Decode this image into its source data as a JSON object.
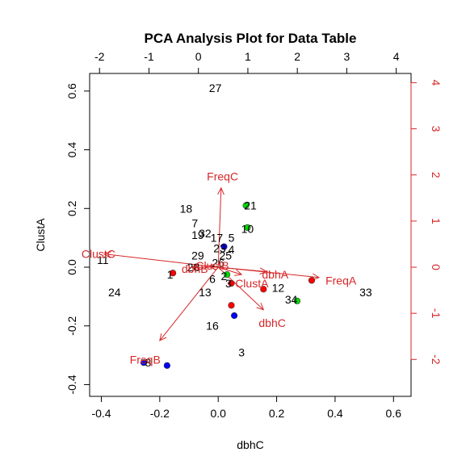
{
  "chart_data": {
    "type": "scatter",
    "title": "PCA Analysis Plot for Data Table",
    "xlabel": "dbhC",
    "ylabel": "ClustA",
    "xlim": [
      -0.44,
      0.66
    ],
    "ylim": [
      -0.44,
      0.66
    ],
    "x_ticks": [
      "-0.4",
      "-0.2",
      "0.0",
      "0.2",
      "0.4",
      "0.6"
    ],
    "y_ticks": [
      "-0.4",
      "-0.2",
      "0.0",
      "0.2",
      "0.4",
      "0.6"
    ],
    "x_tick_values": [
      -0.4,
      -0.2,
      0.0,
      0.2,
      0.4,
      0.6
    ],
    "y_tick_values": [
      -0.4,
      -0.2,
      0.0,
      0.2,
      0.4,
      0.6
    ],
    "secondary_xlim": [
      -2.2,
      4.3
    ],
    "secondary_ylim": [
      -2.8,
      4.2
    ],
    "top_ticks": [
      "-2",
      "-1",
      "0",
      "1",
      "2",
      "3",
      "4"
    ],
    "top_tick_values": [
      -2,
      -1,
      0,
      1,
      2,
      3,
      4
    ],
    "right_ticks": [
      "-2",
      "-1",
      "0",
      "1",
      "2",
      "3",
      "4"
    ],
    "right_tick_values": [
      -2,
      -1,
      0,
      1,
      2,
      3,
      4
    ],
    "grid": false,
    "loading_color": "#d62728",
    "observation_labels": [
      {
        "label": "27",
        "x": -0.01,
        "y": 0.61
      },
      {
        "label": "18",
        "x": -0.11,
        "y": 0.2
      },
      {
        "label": "21",
        "x": 0.11,
        "y": 0.21
      },
      {
        "label": "7",
        "x": -0.08,
        "y": 0.15
      },
      {
        "label": "10",
        "x": 0.1,
        "y": 0.13
      },
      {
        "label": "19",
        "x": -0.07,
        "y": 0.11
      },
      {
        "label": "32",
        "x": -0.045,
        "y": 0.115
      },
      {
        "label": "17",
        "x": -0.005,
        "y": 0.1
      },
      {
        "label": "5",
        "x": 0.045,
        "y": 0.1
      },
      {
        "label": "23",
        "x": 0.005,
        "y": 0.065
      },
      {
        "label": "4",
        "x": 0.045,
        "y": 0.06
      },
      {
        "label": "29",
        "x": -0.07,
        "y": 0.04
      },
      {
        "label": "25",
        "x": 0.025,
        "y": 0.04
      },
      {
        "label": "26",
        "x": 0.0,
        "y": 0.015
      },
      {
        "label": "28",
        "x": -0.085,
        "y": 0.0
      },
      {
        "label": "11",
        "x": -0.395,
        "y": 0.025
      },
      {
        "label": "1",
        "x": -0.165,
        "y": -0.025
      },
      {
        "label": "6",
        "x": -0.02,
        "y": -0.04
      },
      {
        "label": "2",
        "x": 0.02,
        "y": -0.03
      },
      {
        "label": "3",
        "x": 0.035,
        "y": -0.055
      },
      {
        "label": "24",
        "x": -0.355,
        "y": -0.085
      },
      {
        "label": "13",
        "x": -0.045,
        "y": -0.085
      },
      {
        "label": "12",
        "x": 0.205,
        "y": -0.07
      },
      {
        "label": "33",
        "x": 0.505,
        "y": -0.085
      },
      {
        "label": "34",
        "x": 0.25,
        "y": -0.11
      },
      {
        "label": "16",
        "x": -0.02,
        "y": -0.2
      },
      {
        "label": "3",
        "x": 0.08,
        "y": -0.29
      },
      {
        "label": "8",
        "x": -0.24,
        "y": -0.325
      }
    ],
    "points": [
      {
        "color": "#00dd00",
        "x": 0.095,
        "y": 0.21
      },
      {
        "color": "#00dd00",
        "x": 0.1,
        "y": 0.135
      },
      {
        "color": "#0000ff",
        "x": 0.02,
        "y": 0.07
      },
      {
        "color": "#00dd00",
        "x": 0.03,
        "y": -0.025
      },
      {
        "color": "#ff0000",
        "x": -0.155,
        "y": -0.02
      },
      {
        "color": "#ff0000",
        "x": 0.045,
        "y": -0.055
      },
      {
        "color": "#ff0000",
        "x": 0.155,
        "y": -0.075
      },
      {
        "color": "#ff0000",
        "x": 0.32,
        "y": -0.045
      },
      {
        "color": "#00dd00",
        "x": 0.27,
        "y": -0.115
      },
      {
        "color": "#ff0000",
        "x": 0.045,
        "y": -0.13
      },
      {
        "color": "#0000ff",
        "x": 0.055,
        "y": -0.165
      },
      {
        "color": "#0000ff",
        "x": -0.255,
        "y": -0.325
      },
      {
        "color": "#0000ff",
        "x": -0.175,
        "y": -0.335
      }
    ],
    "loadings": [
      {
        "name": "FreqC",
        "x": 0.01,
        "y": 0.27
      },
      {
        "name": "ClustC",
        "x": -0.39,
        "y": 0.045
      },
      {
        "name": "FreqA",
        "x": 0.345,
        "y": -0.035
      },
      {
        "name": "dbhA",
        "x": 0.165,
        "y": -0.015
      },
      {
        "name": "ClustA",
        "x": 0.08,
        "y": -0.025
      },
      {
        "name": "dbhC",
        "x": 0.155,
        "y": -0.145
      },
      {
        "name": "FreqB",
        "x": -0.2,
        "y": -0.25
      },
      {
        "name": "dbhB",
        "x": -0.09,
        "y": 0.0
      },
      {
        "name": "ClustB",
        "x": -0.03,
        "y": 0.005
      }
    ],
    "loading_labels": [
      {
        "text": "FreqC",
        "x": 0.015,
        "y": 0.31
      },
      {
        "text": "ClustC",
        "x": -0.41,
        "y": 0.045
      },
      {
        "text": "FreqA",
        "x": 0.42,
        "y": -0.045
      },
      {
        "text": "dbhA",
        "x": 0.195,
        "y": -0.025
      },
      {
        "text": "ClustA",
        "x": 0.115,
        "y": -0.055
      },
      {
        "text": "dbhC",
        "x": 0.185,
        "y": -0.19
      },
      {
        "text": "FreqB",
        "x": -0.25,
        "y": -0.315
      },
      {
        "text": "dbhB",
        "x": -0.08,
        "y": -0.005
      },
      {
        "text": "ClustB",
        "x": -0.02,
        "y": 0.005
      }
    ]
  }
}
